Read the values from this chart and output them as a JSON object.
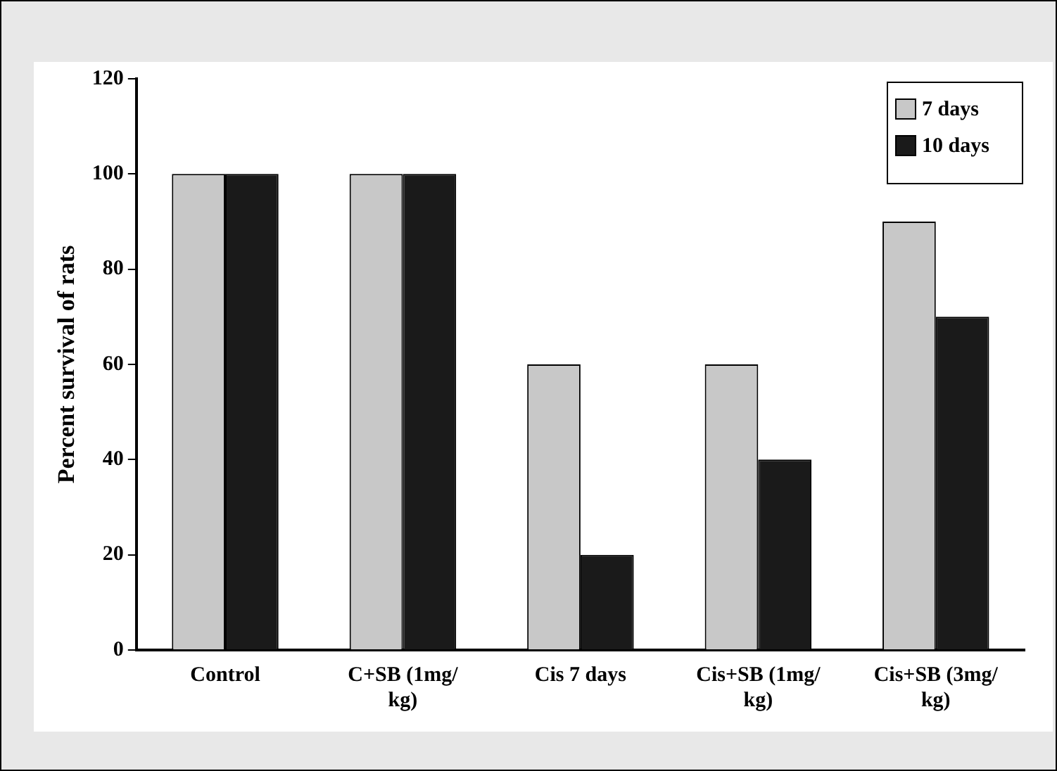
{
  "chart_data": {
    "type": "bar",
    "ylabel": "Percent survival of rats",
    "categories": [
      "Control",
      "C+SB (1mg/kg)",
      "Cis 7 days",
      "Cis+SB (1mg/kg)",
      "Cis+SB (3mg/kg)"
    ],
    "series": [
      {
        "name": "7 days",
        "color": "#c8c8c8",
        "values": [
          100,
          100,
          60,
          60,
          90
        ]
      },
      {
        "name": "10 days",
        "color": "#1a1a1a",
        "values": [
          100,
          100,
          20,
          40,
          70
        ]
      }
    ],
    "ylim": [
      0,
      120
    ],
    "yticks": [
      0,
      20,
      40,
      60,
      80,
      100,
      120
    ],
    "grid": false,
    "legend": "top right"
  }
}
